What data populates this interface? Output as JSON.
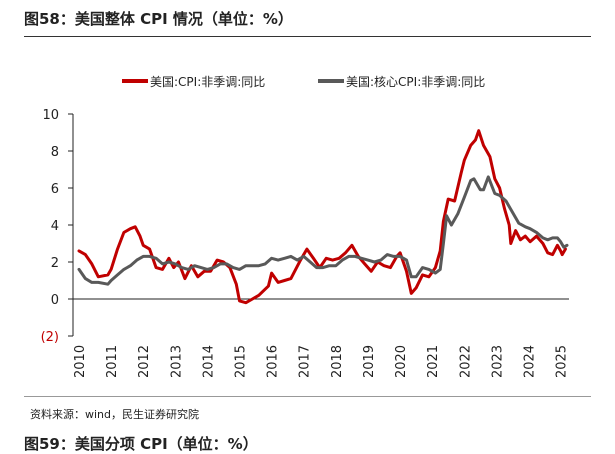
{
  "figure": {
    "title": "图58：美国整体 CPI 情况（单位：%）",
    "source": "资料来源：wind，民生证券研究院",
    "next_title": "图59：美国分项 CPI（单位：%）"
  },
  "colors": {
    "headline": "#c00000",
    "core": "#595959",
    "axis": "#222222",
    "negative_tick": "#c00000"
  },
  "chart_data": {
    "type": "line",
    "title": "",
    "xlabel": "",
    "ylabel": "",
    "ylim": [
      -2,
      10
    ],
    "yticks": [
      -2,
      0,
      2,
      4,
      6,
      8,
      10
    ],
    "ytick_labels": [
      "(2)",
      "0",
      "2",
      "4",
      "6",
      "8",
      "10"
    ],
    "xlim": [
      2010.0,
      2025.2
    ],
    "xticks": [
      "2010",
      "2011",
      "2012",
      "2013",
      "2014",
      "2015",
      "2016",
      "2017",
      "2018",
      "2019",
      "2020",
      "2021",
      "2022",
      "2023",
      "2024",
      "2025"
    ],
    "legend": "top-center",
    "grid": false,
    "series": [
      {
        "name": "美国:CPI:非季调:同比",
        "color": "#c00000",
        "points": [
          [
            2010.0,
            2.6
          ],
          [
            2010.2,
            2.4
          ],
          [
            2010.4,
            1.9
          ],
          [
            2010.6,
            1.2
          ],
          [
            2010.9,
            1.3
          ],
          [
            2011.0,
            1.6
          ],
          [
            2011.2,
            2.7
          ],
          [
            2011.4,
            3.6
          ],
          [
            2011.6,
            3.8
          ],
          [
            2011.75,
            3.9
          ],
          [
            2011.9,
            3.4
          ],
          [
            2012.0,
            2.9
          ],
          [
            2012.2,
            2.7
          ],
          [
            2012.4,
            1.7
          ],
          [
            2012.6,
            1.6
          ],
          [
            2012.8,
            2.2
          ],
          [
            2012.95,
            1.7
          ],
          [
            2013.1,
            2.0
          ],
          [
            2013.3,
            1.1
          ],
          [
            2013.5,
            1.8
          ],
          [
            2013.7,
            1.2
          ],
          [
            2013.9,
            1.5
          ],
          [
            2014.1,
            1.5
          ],
          [
            2014.3,
            2.1
          ],
          [
            2014.5,
            2.0
          ],
          [
            2014.7,
            1.7
          ],
          [
            2014.9,
            0.8
          ],
          [
            2015.0,
            -0.1
          ],
          [
            2015.2,
            -0.2
          ],
          [
            2015.4,
            0.0
          ],
          [
            2015.6,
            0.2
          ],
          [
            2015.9,
            0.7
          ],
          [
            2016.0,
            1.4
          ],
          [
            2016.2,
            0.9
          ],
          [
            2016.4,
            1.0
          ],
          [
            2016.6,
            1.1
          ],
          [
            2016.9,
            2.1
          ],
          [
            2017.1,
            2.7
          ],
          [
            2017.3,
            2.2
          ],
          [
            2017.5,
            1.7
          ],
          [
            2017.7,
            2.2
          ],
          [
            2017.9,
            2.1
          ],
          [
            2018.1,
            2.2
          ],
          [
            2018.3,
            2.5
          ],
          [
            2018.5,
            2.9
          ],
          [
            2018.7,
            2.3
          ],
          [
            2018.9,
            1.9
          ],
          [
            2019.1,
            1.5
          ],
          [
            2019.3,
            2.0
          ],
          [
            2019.5,
            1.8
          ],
          [
            2019.7,
            1.7
          ],
          [
            2019.9,
            2.3
          ],
          [
            2020.0,
            2.5
          ],
          [
            2020.2,
            1.5
          ],
          [
            2020.35,
            0.3
          ],
          [
            2020.5,
            0.6
          ],
          [
            2020.7,
            1.3
          ],
          [
            2020.9,
            1.2
          ],
          [
            2021.1,
            1.7
          ],
          [
            2021.25,
            2.6
          ],
          [
            2021.35,
            4.2
          ],
          [
            2021.5,
            5.4
          ],
          [
            2021.7,
            5.3
          ],
          [
            2021.9,
            6.8
          ],
          [
            2022.0,
            7.5
          ],
          [
            2022.2,
            8.3
          ],
          [
            2022.35,
            8.6
          ],
          [
            2022.45,
            9.1
          ],
          [
            2022.6,
            8.3
          ],
          [
            2022.8,
            7.7
          ],
          [
            2022.95,
            6.5
          ],
          [
            2023.1,
            6.0
          ],
          [
            2023.25,
            4.9
          ],
          [
            2023.4,
            4.0
          ],
          [
            2023.45,
            3.0
          ],
          [
            2023.6,
            3.7
          ],
          [
            2023.75,
            3.2
          ],
          [
            2023.9,
            3.4
          ],
          [
            2024.05,
            3.1
          ],
          [
            2024.25,
            3.4
          ],
          [
            2024.45,
            3.0
          ],
          [
            2024.6,
            2.5
          ],
          [
            2024.75,
            2.4
          ],
          [
            2024.9,
            2.9
          ],
          [
            2025.0,
            2.6
          ],
          [
            2025.05,
            2.4
          ],
          [
            2025.15,
            2.7
          ]
        ]
      },
      {
        "name": "美国:核心CPI:非季调:同比",
        "color": "#595959",
        "points": [
          [
            2010.0,
            1.6
          ],
          [
            2010.2,
            1.1
          ],
          [
            2010.4,
            0.9
          ],
          [
            2010.6,
            0.9
          ],
          [
            2010.9,
            0.8
          ],
          [
            2011.0,
            1.0
          ],
          [
            2011.2,
            1.3
          ],
          [
            2011.4,
            1.6
          ],
          [
            2011.6,
            1.8
          ],
          [
            2011.8,
            2.1
          ],
          [
            2012.0,
            2.3
          ],
          [
            2012.2,
            2.3
          ],
          [
            2012.4,
            2.2
          ],
          [
            2012.6,
            1.9
          ],
          [
            2012.8,
            2.0
          ],
          [
            2013.0,
            1.9
          ],
          [
            2013.2,
            1.7
          ],
          [
            2013.4,
            1.6
          ],
          [
            2013.6,
            1.8
          ],
          [
            2013.8,
            1.7
          ],
          [
            2014.0,
            1.6
          ],
          [
            2014.2,
            1.7
          ],
          [
            2014.4,
            1.9
          ],
          [
            2014.6,
            1.9
          ],
          [
            2014.8,
            1.7
          ],
          [
            2015.0,
            1.6
          ],
          [
            2015.2,
            1.8
          ],
          [
            2015.4,
            1.8
          ],
          [
            2015.6,
            1.8
          ],
          [
            2015.8,
            1.9
          ],
          [
            2016.0,
            2.2
          ],
          [
            2016.2,
            2.1
          ],
          [
            2016.4,
            2.2
          ],
          [
            2016.6,
            2.3
          ],
          [
            2016.8,
            2.1
          ],
          [
            2017.0,
            2.3
          ],
          [
            2017.2,
            2.0
          ],
          [
            2017.4,
            1.7
          ],
          [
            2017.6,
            1.7
          ],
          [
            2017.8,
            1.8
          ],
          [
            2018.0,
            1.8
          ],
          [
            2018.2,
            2.1
          ],
          [
            2018.4,
            2.3
          ],
          [
            2018.6,
            2.3
          ],
          [
            2018.8,
            2.2
          ],
          [
            2019.0,
            2.1
          ],
          [
            2019.2,
            2.0
          ],
          [
            2019.4,
            2.1
          ],
          [
            2019.6,
            2.4
          ],
          [
            2019.8,
            2.3
          ],
          [
            2020.0,
            2.3
          ],
          [
            2020.2,
            2.1
          ],
          [
            2020.35,
            1.2
          ],
          [
            2020.5,
            1.2
          ],
          [
            2020.7,
            1.7
          ],
          [
            2020.9,
            1.6
          ],
          [
            2021.1,
            1.4
          ],
          [
            2021.25,
            1.6
          ],
          [
            2021.35,
            3.0
          ],
          [
            2021.45,
            4.5
          ],
          [
            2021.6,
            4.0
          ],
          [
            2021.8,
            4.6
          ],
          [
            2022.0,
            5.5
          ],
          [
            2022.2,
            6.4
          ],
          [
            2022.3,
            6.5
          ],
          [
            2022.5,
            5.9
          ],
          [
            2022.6,
            5.9
          ],
          [
            2022.75,
            6.6
          ],
          [
            2022.95,
            5.7
          ],
          [
            2023.1,
            5.6
          ],
          [
            2023.3,
            5.3
          ],
          [
            2023.5,
            4.7
          ],
          [
            2023.7,
            4.1
          ],
          [
            2023.9,
            3.9
          ],
          [
            2024.05,
            3.8
          ],
          [
            2024.25,
            3.6
          ],
          [
            2024.45,
            3.3
          ],
          [
            2024.6,
            3.2
          ],
          [
            2024.75,
            3.3
          ],
          [
            2024.9,
            3.3
          ],
          [
            2025.0,
            3.1
          ],
          [
            2025.1,
            2.8
          ],
          [
            2025.2,
            2.9
          ]
        ]
      }
    ]
  }
}
